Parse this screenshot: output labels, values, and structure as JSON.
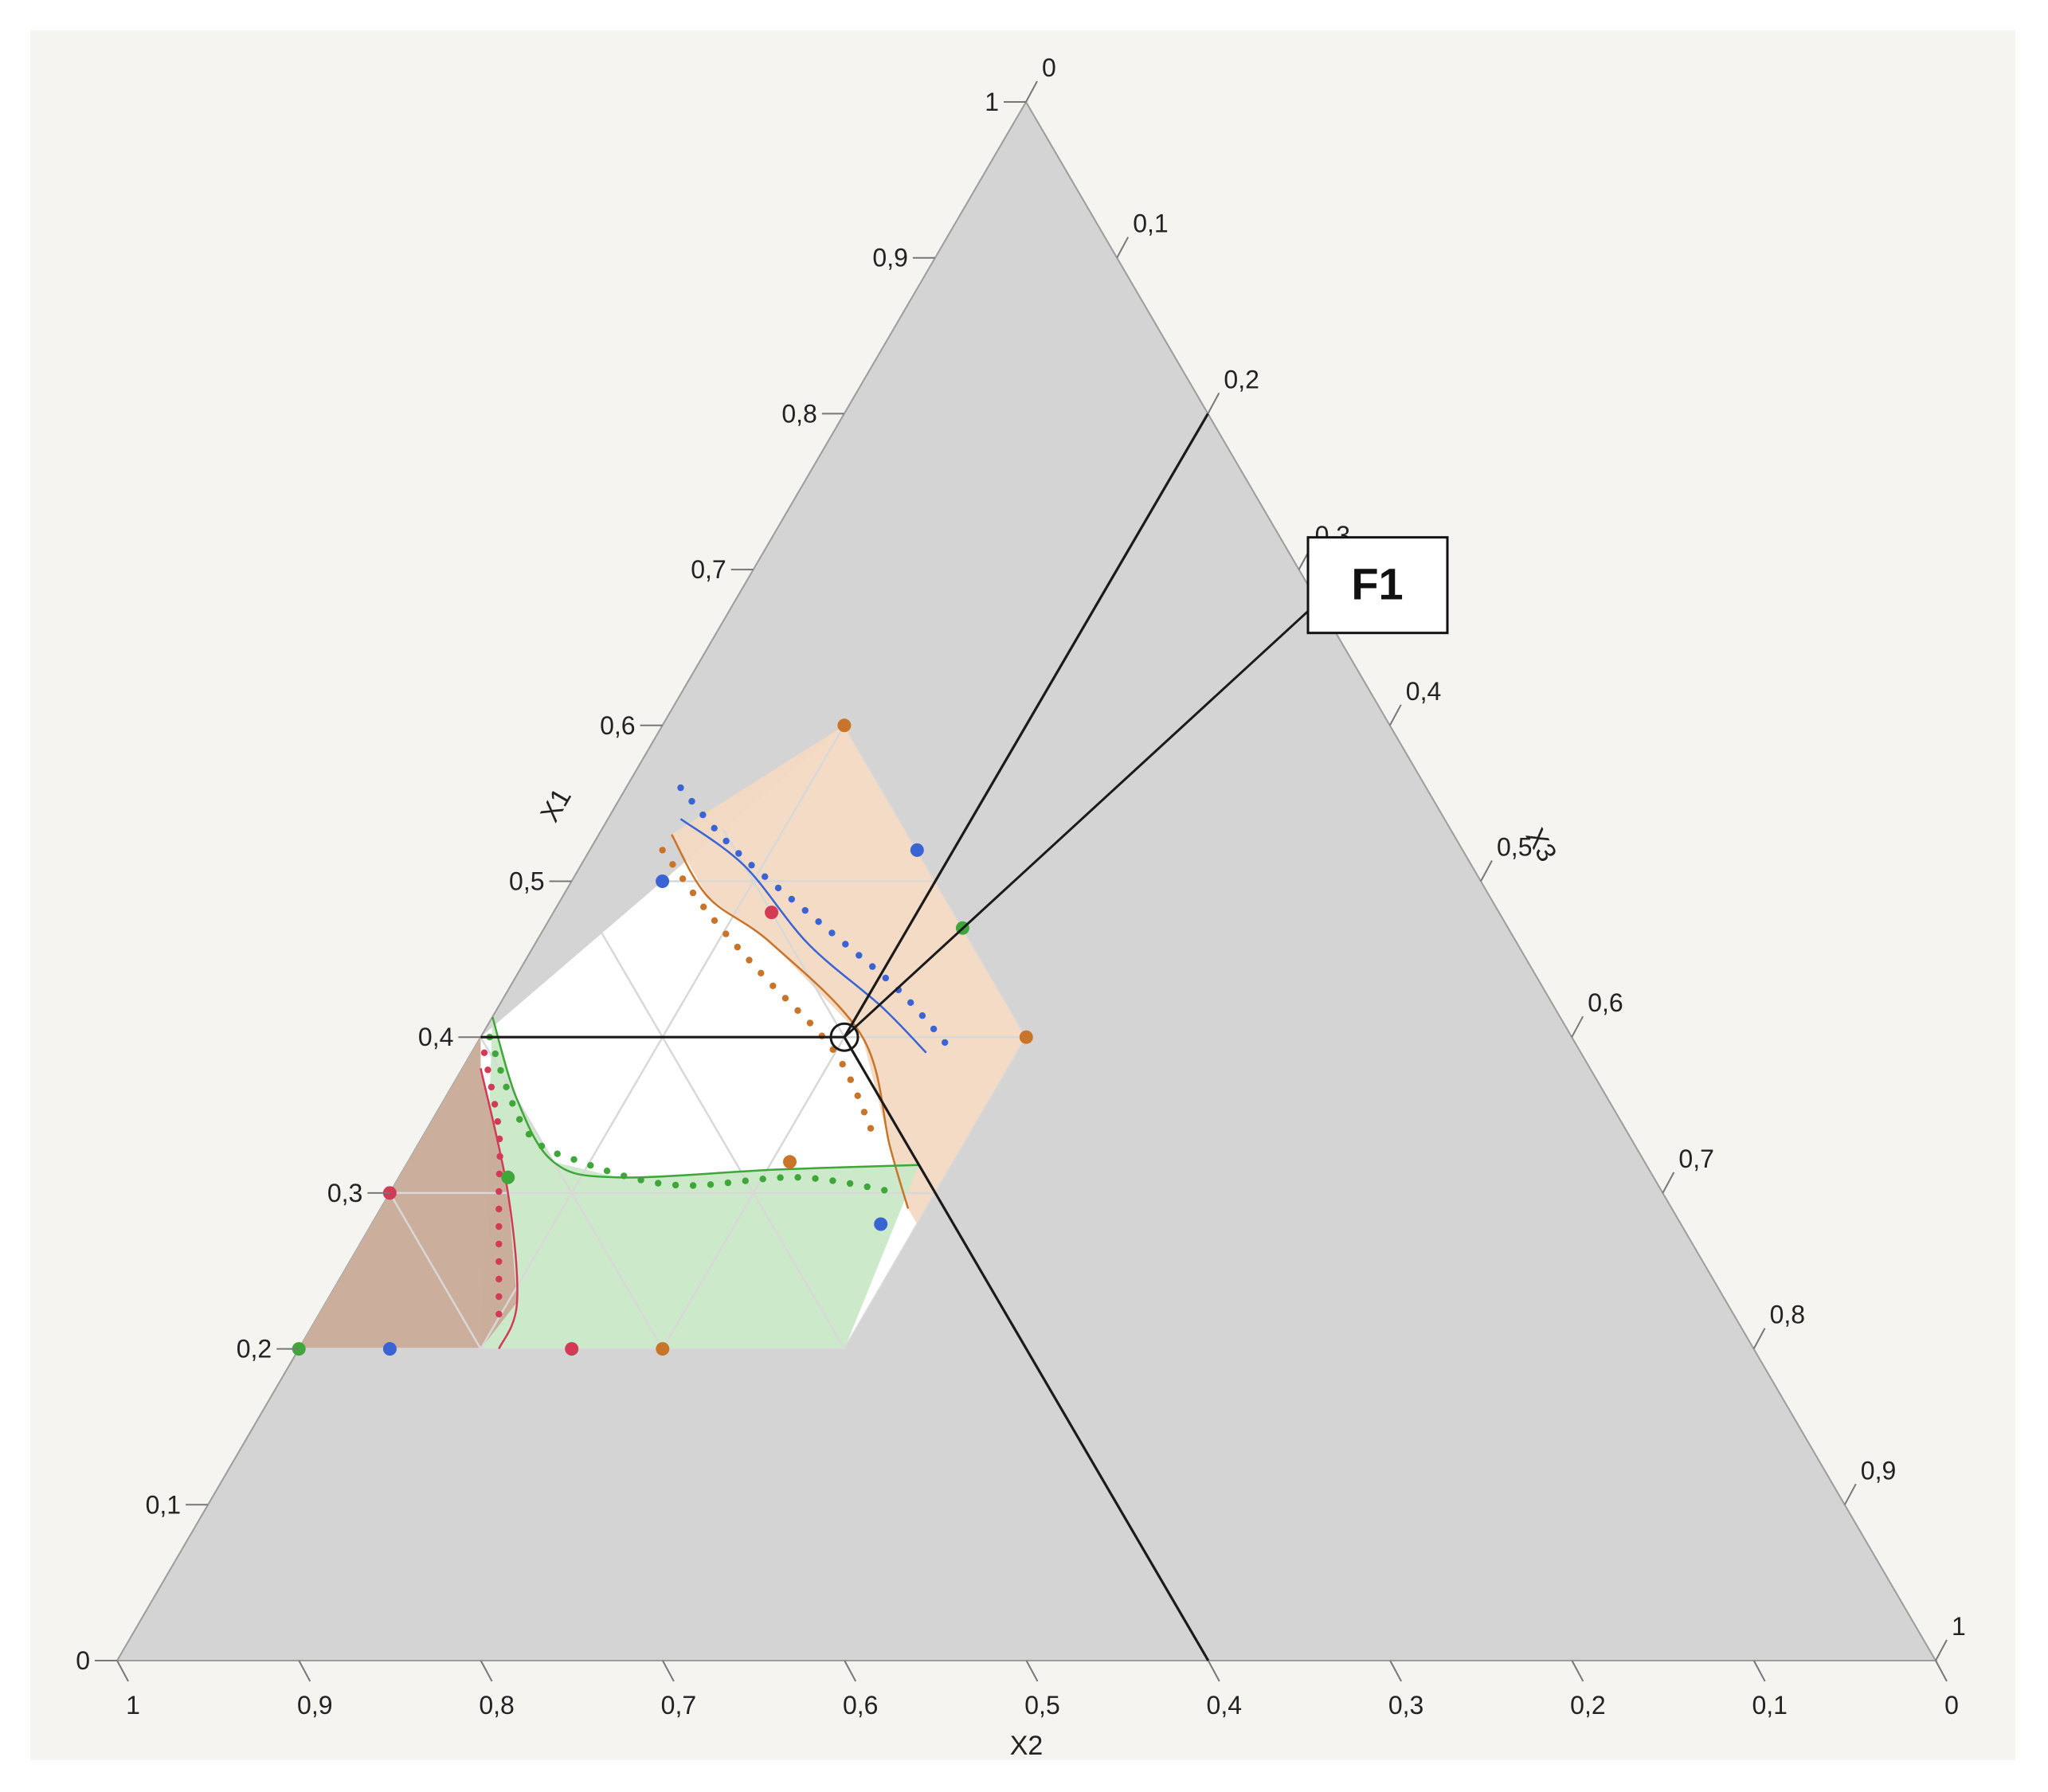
{
  "chart_data": {
    "type": "ternary",
    "axes": {
      "x1": {
        "label": "X1",
        "tick_labels": [
          "0",
          "0,1",
          "0,2",
          "0,3",
          "0,4",
          "0,5",
          "0,6",
          "0,7",
          "0,8",
          "0,9",
          "1"
        ]
      },
      "x2": {
        "label": "X2",
        "tick_labels": [
          "1",
          "0,9",
          "0,8",
          "0,7",
          "0,6",
          "0,5",
          "0,4",
          "0,3",
          "0,2",
          "0,1",
          "0"
        ]
      },
      "x3": {
        "label": "X3",
        "tick_labels": [
          "0",
          "0,1",
          "0,2",
          "0,3",
          "0,4",
          "0,5",
          "0,6",
          "0,7",
          "0,8",
          "0,9",
          "1"
        ]
      }
    },
    "colors": {
      "background": "#d4d4d4",
      "feasible": "#ffffff",
      "orange": "#c8742a",
      "orange_fill": "#f3d9c2",
      "blue": "#3a63d4",
      "green": "#3fa63a",
      "green_fill": "#c9e9c6",
      "red": "#d23a56",
      "red_fill": "#c9aa98",
      "crosshair": "#1a1a1a"
    },
    "design_points": [
      {
        "x1": 0.6,
        "x2": 0.3,
        "x3": 0.1,
        "color": "orange"
      },
      {
        "x1": 0.4,
        "x2": 0.3,
        "x3": 0.3,
        "color": "orange"
      },
      {
        "x1": 0.2,
        "x2": 0.6,
        "x3": 0.2,
        "color": "orange"
      },
      {
        "x1": 0.32,
        "x2": 0.47,
        "x3": 0.21,
        "color": "orange"
      },
      {
        "x1": 0.5,
        "x2": 0.45,
        "x3": 0.05,
        "color": "blue"
      },
      {
        "x1": 0.52,
        "x2": 0.3,
        "x3": 0.18,
        "color": "blue"
      },
      {
        "x1": 0.28,
        "x2": 0.44,
        "x3": 0.28,
        "color": "blue"
      },
      {
        "x1": 0.2,
        "x2": 0.75,
        "x3": 0.05,
        "color": "blue"
      },
      {
        "x1": 0.47,
        "x2": 0.3,
        "x3": 0.23,
        "color": "green"
      },
      {
        "x1": 0.31,
        "x2": 0.63,
        "x3": 0.06,
        "color": "green"
      },
      {
        "x1": 0.2,
        "x2": 0.8,
        "x3": 0.0,
        "color": "green"
      },
      {
        "x1": 0.48,
        "x2": 0.4,
        "x3": 0.12,
        "color": "red"
      },
      {
        "x1": 0.3,
        "x2": 0.7,
        "x3": 0.0,
        "color": "red"
      },
      {
        "x1": 0.2,
        "x2": 0.65,
        "x3": 0.15,
        "color": "red"
      }
    ],
    "region_polygon": [
      {
        "x1": 0.6,
        "x2": 0.3,
        "x3": 0.1
      },
      {
        "x1": 0.4,
        "x2": 0.3,
        "x3": 0.3
      },
      {
        "x1": 0.2,
        "x2": 0.5,
        "x3": 0.3
      },
      {
        "x1": 0.2,
        "x2": 0.8,
        "x3": 0.0
      },
      {
        "x1": 0.4,
        "x2": 0.6,
        "x3": 0.0
      }
    ],
    "shaded_regions": [
      {
        "color": "orange",
        "points": [
          {
            "x1": 0.6,
            "x2": 0.3,
            "x3": 0.1
          },
          {
            "x1": 0.4,
            "x2": 0.3,
            "x3": 0.3
          },
          {
            "x1": 0.28,
            "x2": 0.42,
            "x3": 0.3
          },
          {
            "x1": 0.29,
            "x2": 0.42,
            "x3": 0.29
          },
          {
            "x1": 0.33,
            "x2": 0.41,
            "x3": 0.26
          },
          {
            "x1": 0.4,
            "x2": 0.39,
            "x3": 0.21
          },
          {
            "x1": 0.46,
            "x2": 0.41,
            "x3": 0.13
          },
          {
            "x1": 0.49,
            "x2": 0.43,
            "x3": 0.08
          },
          {
            "x1": 0.53,
            "x2": 0.43,
            "x3": 0.04
          }
        ]
      },
      {
        "color": "green",
        "points": [
          {
            "x1": 0.413,
            "x2": 0.587,
            "x3": 0.0
          },
          {
            "x1": 0.36,
            "x2": 0.6,
            "x3": 0.04
          },
          {
            "x1": 0.32,
            "x2": 0.6,
            "x3": 0.08
          },
          {
            "x1": 0.31,
            "x2": 0.57,
            "x3": 0.12
          },
          {
            "x1": 0.315,
            "x2": 0.48,
            "x3": 0.205
          },
          {
            "x1": 0.318,
            "x2": 0.4,
            "x3": 0.282
          },
          {
            "x1": 0.2,
            "x2": 0.5,
            "x3": 0.3
          },
          {
            "x1": 0.2,
            "x2": 0.7,
            "x3": 0.1
          }
        ]
      },
      {
        "color": "red",
        "points": [
          {
            "x1": 0.4,
            "x2": 0.6,
            "x3": 0.0
          },
          {
            "x1": 0.2,
            "x2": 0.8,
            "x3": 0.0
          },
          {
            "x1": 0.2,
            "x2": 0.7,
            "x3": 0.1
          },
          {
            "x1": 0.23,
            "x2": 0.665,
            "x3": 0.105
          },
          {
            "x1": 0.3,
            "x2": 0.635,
            "x3": 0.065
          },
          {
            "x1": 0.38,
            "x2": 0.61,
            "x3": 0.01
          }
        ]
      }
    ],
    "contours": [
      {
        "color": "blue",
        "points": [
          {
            "x1": 0.54,
            "x2": 0.42,
            "x3": 0.04
          },
          {
            "x1": 0.51,
            "x2": 0.4,
            "x3": 0.09
          },
          {
            "x1": 0.46,
            "x2": 0.39,
            "x3": 0.15
          },
          {
            "x1": 0.42,
            "x2": 0.37,
            "x3": 0.21
          },
          {
            "x1": 0.39,
            "x2": 0.36,
            "x3": 0.25
          }
        ]
      },
      {
        "color": "orange",
        "points": [
          {
            "x1": 0.53,
            "x2": 0.43,
            "x3": 0.04
          },
          {
            "x1": 0.49,
            "x2": 0.43,
            "x3": 0.08
          },
          {
            "x1": 0.46,
            "x2": 0.41,
            "x3": 0.13
          },
          {
            "x1": 0.4,
            "x2": 0.39,
            "x3": 0.21
          },
          {
            "x1": 0.33,
            "x2": 0.41,
            "x3": 0.26
          },
          {
            "x1": 0.29,
            "x2": 0.42,
            "x3": 0.29
          }
        ]
      },
      {
        "color": "green",
        "points": [
          {
            "x1": 0.413,
            "x2": 0.587,
            "x3": 0.0
          },
          {
            "x1": 0.36,
            "x2": 0.6,
            "x3": 0.04
          },
          {
            "x1": 0.32,
            "x2": 0.6,
            "x3": 0.08
          },
          {
            "x1": 0.31,
            "x2": 0.57,
            "x3": 0.12
          },
          {
            "x1": 0.315,
            "x2": 0.48,
            "x3": 0.205
          },
          {
            "x1": 0.318,
            "x2": 0.4,
            "x3": 0.282
          }
        ]
      },
      {
        "color": "red",
        "points": [
          {
            "x1": 0.38,
            "x2": 0.61,
            "x3": 0.01
          },
          {
            "x1": 0.3,
            "x2": 0.635,
            "x3": 0.065
          },
          {
            "x1": 0.23,
            "x2": 0.665,
            "x3": 0.105
          },
          {
            "x1": 0.2,
            "x2": 0.69,
            "x3": 0.11
          }
        ]
      }
    ],
    "confidence_dots": [
      {
        "color": "blue",
        "points": [
          {
            "x1": 0.56,
            "x2": 0.41,
            "x3": 0.03
          },
          {
            "x1": 0.52,
            "x2": 0.4,
            "x3": 0.08
          },
          {
            "x1": 0.47,
            "x2": 0.375,
            "x3": 0.155
          },
          {
            "x1": 0.43,
            "x2": 0.355,
            "x3": 0.215
          },
          {
            "x1": 0.39,
            "x2": 0.345,
            "x3": 0.265
          }
        ]
      },
      {
        "color": "orange",
        "points": [
          {
            "x1": 0.52,
            "x2": 0.44,
            "x3": 0.04
          },
          {
            "x1": 0.48,
            "x2": 0.435,
            "x3": 0.085
          },
          {
            "x1": 0.44,
            "x2": 0.425,
            "x3": 0.135
          },
          {
            "x1": 0.39,
            "x2": 0.41,
            "x3": 0.2
          },
          {
            "x1": 0.34,
            "x2": 0.415,
            "x3": 0.245
          }
        ]
      },
      {
        "color": "green",
        "points": [
          {
            "x1": 0.4,
            "x2": 0.595,
            "x3": 0.005
          },
          {
            "x1": 0.34,
            "x2": 0.605,
            "x3": 0.055
          },
          {
            "x1": 0.32,
            "x2": 0.585,
            "x3": 0.095
          },
          {
            "x1": 0.305,
            "x2": 0.54,
            "x3": 0.155
          },
          {
            "x1": 0.31,
            "x2": 0.47,
            "x3": 0.22
          },
          {
            "x1": 0.3,
            "x2": 0.42,
            "x3": 0.28
          }
        ]
      },
      {
        "color": "red",
        "points": [
          {
            "x1": 0.39,
            "x2": 0.603,
            "x3": 0.007
          },
          {
            "x1": 0.34,
            "x2": 0.62,
            "x3": 0.04
          },
          {
            "x1": 0.3,
            "x2": 0.64,
            "x3": 0.06
          },
          {
            "x1": 0.26,
            "x2": 0.66,
            "x3": 0.08
          },
          {
            "x1": 0.22,
            "x2": 0.68,
            "x3": 0.1
          }
        ]
      }
    ],
    "crosshair": {
      "x1": 0.4,
      "x2": 0.4,
      "x3": 0.2
    },
    "annotation": {
      "text": "F1",
      "box_at": {
        "x1": 0.69,
        "x2": 0.0,
        "x3": 0.31
      }
    },
    "grid": true,
    "legend": "none"
  }
}
